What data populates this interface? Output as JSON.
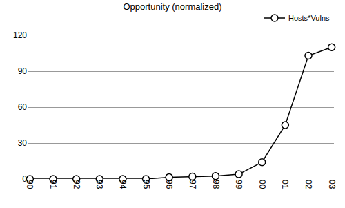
{
  "chart_data": {
    "type": "line",
    "title": "Opportunity (normalized)",
    "categories": [
      "90",
      "91",
      "92",
      "93",
      "94",
      "95",
      "96",
      "97",
      "98",
      "99",
      "00",
      "01",
      "02",
      "03"
    ],
    "series": [
      {
        "name": "Hosts*Vulns",
        "color": "#000000",
        "marker": "circle-open",
        "line_style": "solid",
        "values": [
          0,
          0,
          0,
          0,
          0,
          0,
          1.5,
          2,
          2.5,
          4,
          14,
          45,
          103,
          110
        ]
      }
    ],
    "ylim": [
      0,
      120
    ],
    "yticks": [
      0,
      30,
      60,
      90,
      120
    ],
    "grid": true,
    "legend": "top right"
  }
}
